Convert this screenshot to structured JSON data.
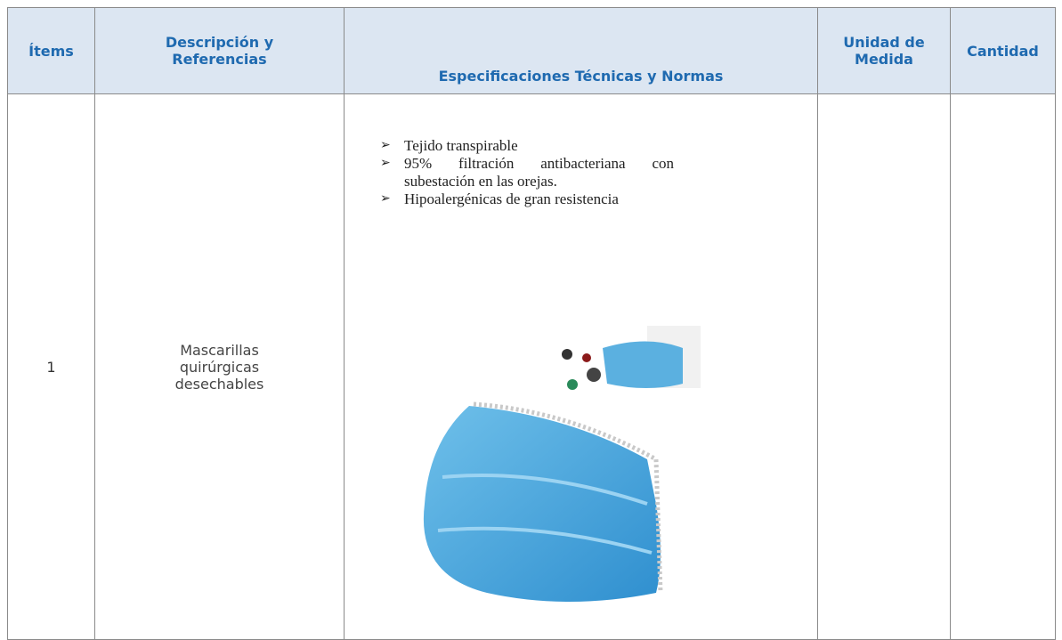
{
  "table": {
    "header": [
      "Ítems",
      "Descripción y Referencias",
      "Especificaciones Técnicas y Normas",
      "Unidad de Medida",
      "Cantidad"
    ],
    "rows": [
      {
        "item": "1",
        "description": "Mascarillas quirúrgicas desechables",
        "specifications": [
          "Tejido transpirable",
          "95% filtración antibacteriana con subestación en las orejas.",
          "Hipoalergénicas de gran resistencia"
        ]
      }
    ]
  }
}
